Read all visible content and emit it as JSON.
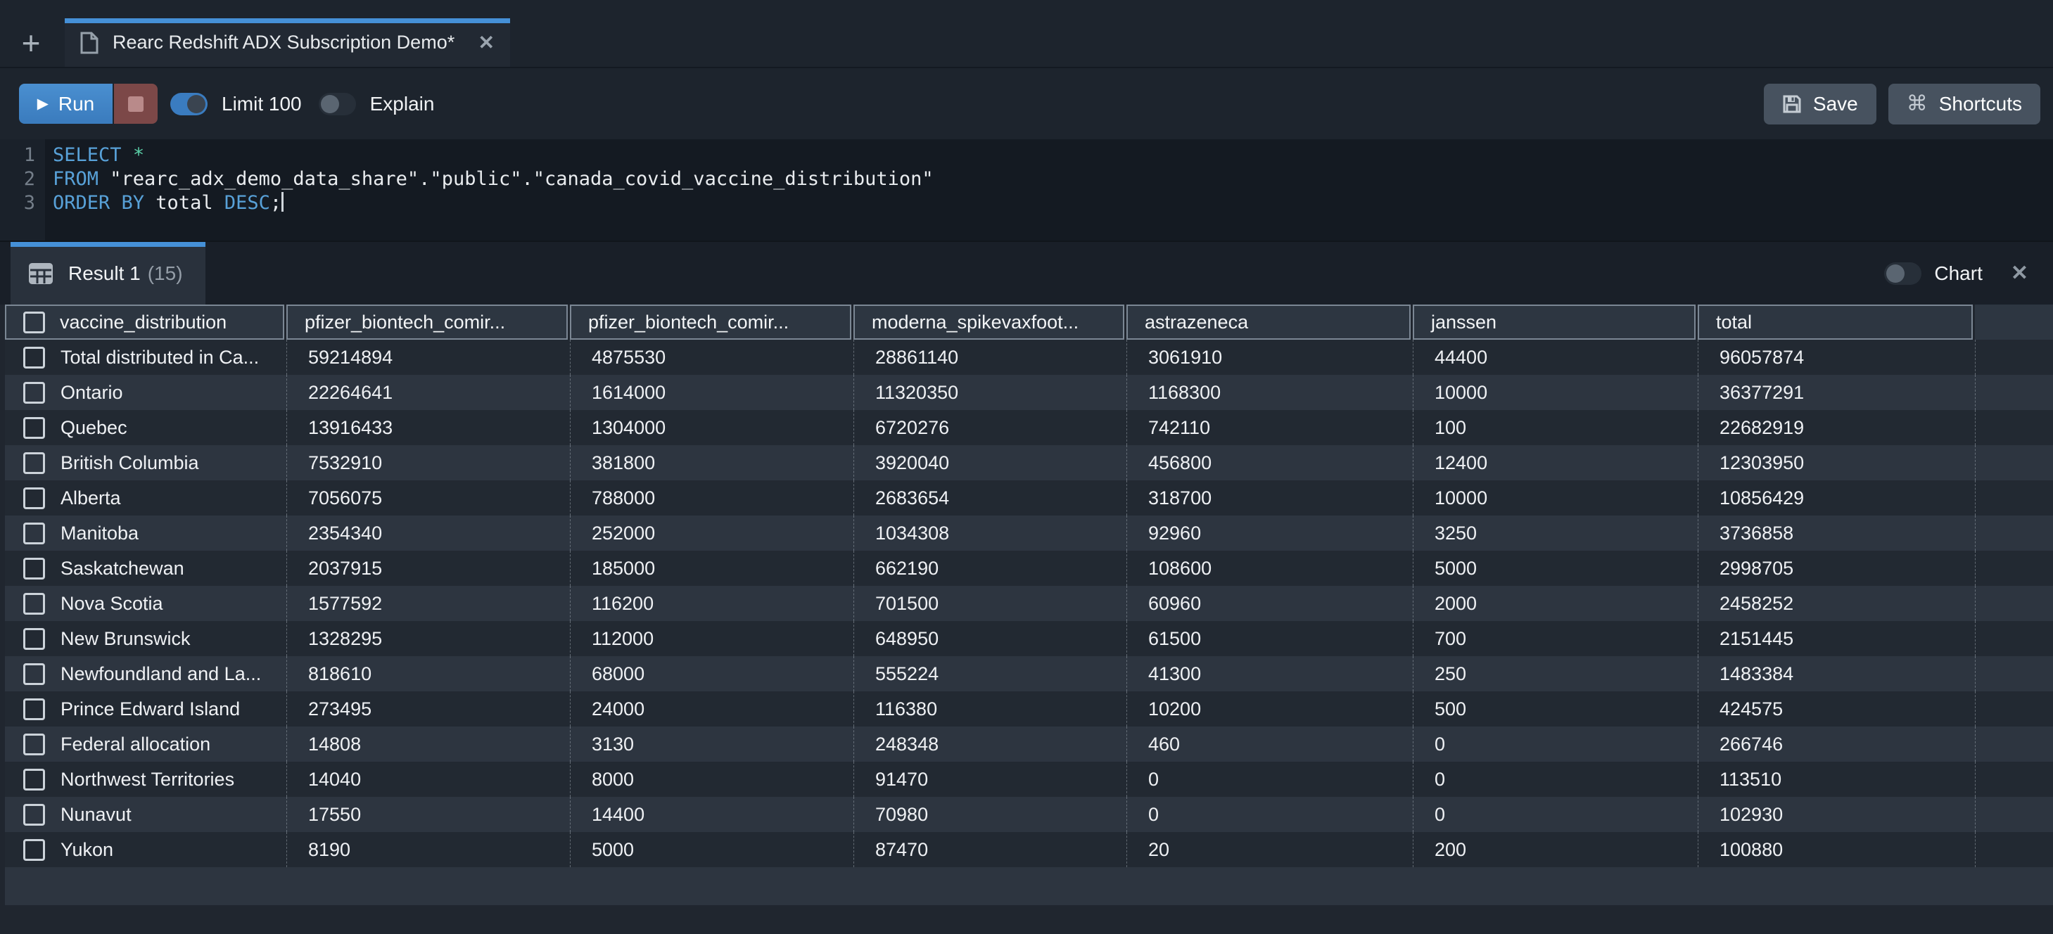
{
  "icons": {
    "new_tab": "+",
    "close": "✕",
    "play": "▶",
    "command": "⌘"
  },
  "colors": {
    "accent_blue": "#4590d7",
    "run_button_blue": "#3e81c4",
    "stop_red": "#7c4848",
    "toggle_on_blue": "#3a7cc0",
    "row_dark": "#222932",
    "row_light": "#2d3540",
    "header_border": "#7b8794"
  },
  "tab_bar": {
    "tab": {
      "title": "Rearc Redshift ADX Subscription Demo*"
    }
  },
  "toolbar": {
    "run_label": "Run",
    "limit_label": "Limit 100",
    "limit_on": true,
    "explain_label": "Explain",
    "explain_on": false,
    "save_label": "Save",
    "shortcuts_label": "Shortcuts"
  },
  "editor": {
    "lines": [
      {
        "num": "1",
        "segments": [
          [
            "kw",
            "SELECT"
          ],
          [
            "plain",
            " "
          ],
          [
            "op",
            "*"
          ]
        ],
        "cursor": false
      },
      {
        "num": "2",
        "segments": [
          [
            "kw",
            "FROM"
          ],
          [
            "plain",
            " \"rearc_adx_demo_data_share\".\"public\".\"canada_covid_vaccine_distribution\""
          ]
        ],
        "cursor": false
      },
      {
        "num": "3",
        "segments": [
          [
            "kw",
            "ORDER BY"
          ],
          [
            "plain",
            " total "
          ],
          [
            "kw",
            "DESC"
          ],
          [
            "plain",
            ";"
          ]
        ],
        "cursor": true
      }
    ]
  },
  "results": {
    "tab_label": "Result 1",
    "tab_count": "(15)",
    "chart_label": "Chart",
    "chart_on": false,
    "table": {
      "columns": [
        "vaccine_distribution",
        "pfizer_biontech_comir...",
        "pfizer_biontech_comir...",
        "moderna_spikevaxfoot...",
        "astrazeneca",
        "janssen",
        "total"
      ],
      "rows": [
        [
          "Total distributed in Ca...",
          "59214894",
          "4875530",
          "28861140",
          "3061910",
          "44400",
          "96057874"
        ],
        [
          "Ontario",
          "22264641",
          "1614000",
          "11320350",
          "1168300",
          "10000",
          "36377291"
        ],
        [
          "Quebec",
          "13916433",
          "1304000",
          "6720276",
          "742110",
          "100",
          "22682919"
        ],
        [
          "British Columbia",
          "7532910",
          "381800",
          "3920040",
          "456800",
          "12400",
          "12303950"
        ],
        [
          "Alberta",
          "7056075",
          "788000",
          "2683654",
          "318700",
          "10000",
          "10856429"
        ],
        [
          "Manitoba",
          "2354340",
          "252000",
          "1034308",
          "92960",
          "3250",
          "3736858"
        ],
        [
          "Saskatchewan",
          "2037915",
          "185000",
          "662190",
          "108600",
          "5000",
          "2998705"
        ],
        [
          "Nova Scotia",
          "1577592",
          "116200",
          "701500",
          "60960",
          "2000",
          "2458252"
        ],
        [
          "New Brunswick",
          "1328295",
          "112000",
          "648950",
          "61500",
          "700",
          "2151445"
        ],
        [
          "Newfoundland and La...",
          "818610",
          "68000",
          "555224",
          "41300",
          "250",
          "1483384"
        ],
        [
          "Prince Edward Island",
          "273495",
          "24000",
          "116380",
          "10200",
          "500",
          "424575"
        ],
        [
          "Federal allocation",
          "14808",
          "3130",
          "248348",
          "460",
          "0",
          "266746"
        ],
        [
          "Northwest Territories",
          "14040",
          "8000",
          "91470",
          "0",
          "0",
          "113510"
        ],
        [
          "Nunavut",
          "17550",
          "14400",
          "70980",
          "0",
          "0",
          "102930"
        ],
        [
          "Yukon",
          "8190",
          "5000",
          "87470",
          "20",
          "200",
          "100880"
        ]
      ]
    }
  }
}
